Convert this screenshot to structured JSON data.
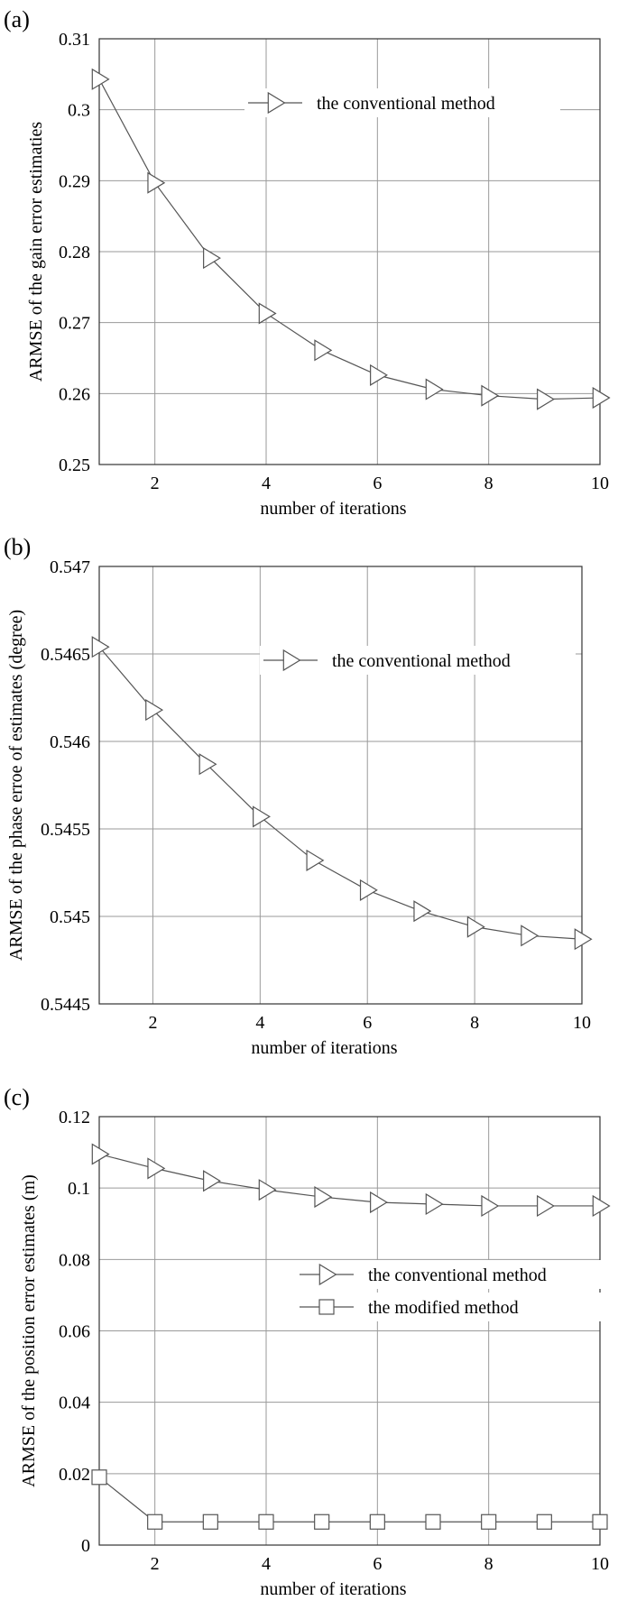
{
  "chart_data": [
    {
      "panel": "(a)",
      "type": "line",
      "xlabel": "number of iterations",
      "ylabel": "ARMSE of the gain error estimaties",
      "xlim": [
        1,
        10
      ],
      "ylim": [
        0.25,
        0.31
      ],
      "xticks": [
        2,
        4,
        6,
        8,
        10
      ],
      "xtick_labels": [
        "2",
        "4",
        "6",
        "8",
        "10"
      ],
      "yticks": [
        0.25,
        0.26,
        0.27,
        0.28,
        0.29,
        0.3,
        0.31
      ],
      "ytick_labels": [
        "0.25",
        "0.26",
        "0.27",
        "0.28",
        "0.29",
        "0.3",
        "0.31"
      ],
      "grid": true,
      "legend_position": "top-center",
      "x": [
        1,
        2,
        3,
        4,
        5,
        6,
        7,
        8,
        9,
        10
      ],
      "series": [
        {
          "name": "the conventional method",
          "marker": "triangle-right",
          "values": [
            0.3043,
            0.2897,
            0.2791,
            0.2713,
            0.2661,
            0.2626,
            0.2606,
            0.2597,
            0.2592,
            0.2594
          ]
        }
      ]
    },
    {
      "panel": "(b)",
      "type": "line",
      "xlabel": "number of iterations",
      "ylabel": "ARMSE of the phase erroe of estimates (degree)",
      "xlim": [
        1,
        10
      ],
      "ylim": [
        0.5445,
        0.547
      ],
      "xticks": [
        2,
        4,
        6,
        8,
        10
      ],
      "xtick_labels": [
        "2",
        "4",
        "6",
        "8",
        "10"
      ],
      "yticks": [
        0.5445,
        0.545,
        0.5455,
        0.546,
        0.5465,
        0.547
      ],
      "ytick_labels": [
        "0.5445",
        "0.545",
        "0.5455",
        "0.546",
        "0.5465",
        "0.547"
      ],
      "grid": true,
      "legend_position": "top-center",
      "x": [
        1,
        2,
        3,
        4,
        5,
        6,
        7,
        8,
        9,
        10
      ],
      "series": [
        {
          "name": "the conventional method",
          "marker": "triangle-right",
          "values": [
            0.54654,
            0.54618,
            0.54587,
            0.54557,
            0.54532,
            0.54515,
            0.54503,
            0.54494,
            0.54489,
            0.54487
          ]
        }
      ]
    },
    {
      "panel": "(c)",
      "type": "line",
      "xlabel": "number of iterations",
      "ylabel": "ARMSE of the position error estimates (m)",
      "xlim": [
        1,
        10
      ],
      "ylim": [
        0,
        0.12
      ],
      "xticks": [
        2,
        4,
        6,
        8,
        10
      ],
      "xtick_labels": [
        "2",
        "4",
        "6",
        "8",
        "10"
      ],
      "yticks": [
        0,
        0.02,
        0.04,
        0.06,
        0.08,
        0.1,
        0.12
      ],
      "ytick_labels": [
        "0",
        "0.02",
        "0.04",
        "0.06",
        "0.08",
        "0.1",
        "0.12"
      ],
      "grid": true,
      "legend_position": "center-right",
      "x": [
        1,
        2,
        3,
        4,
        5,
        6,
        7,
        8,
        9,
        10
      ],
      "series": [
        {
          "name": "the conventional method",
          "marker": "triangle-right",
          "values": [
            0.1095,
            0.1055,
            0.102,
            0.0995,
            0.0975,
            0.096,
            0.0955,
            0.095,
            0.095,
            0.095
          ]
        },
        {
          "name": "the modified method",
          "marker": "square",
          "values": [
            0.019,
            0.0065,
            0.0065,
            0.0065,
            0.0065,
            0.0065,
            0.0065,
            0.0065,
            0.0065,
            0.0065
          ]
        }
      ]
    }
  ]
}
